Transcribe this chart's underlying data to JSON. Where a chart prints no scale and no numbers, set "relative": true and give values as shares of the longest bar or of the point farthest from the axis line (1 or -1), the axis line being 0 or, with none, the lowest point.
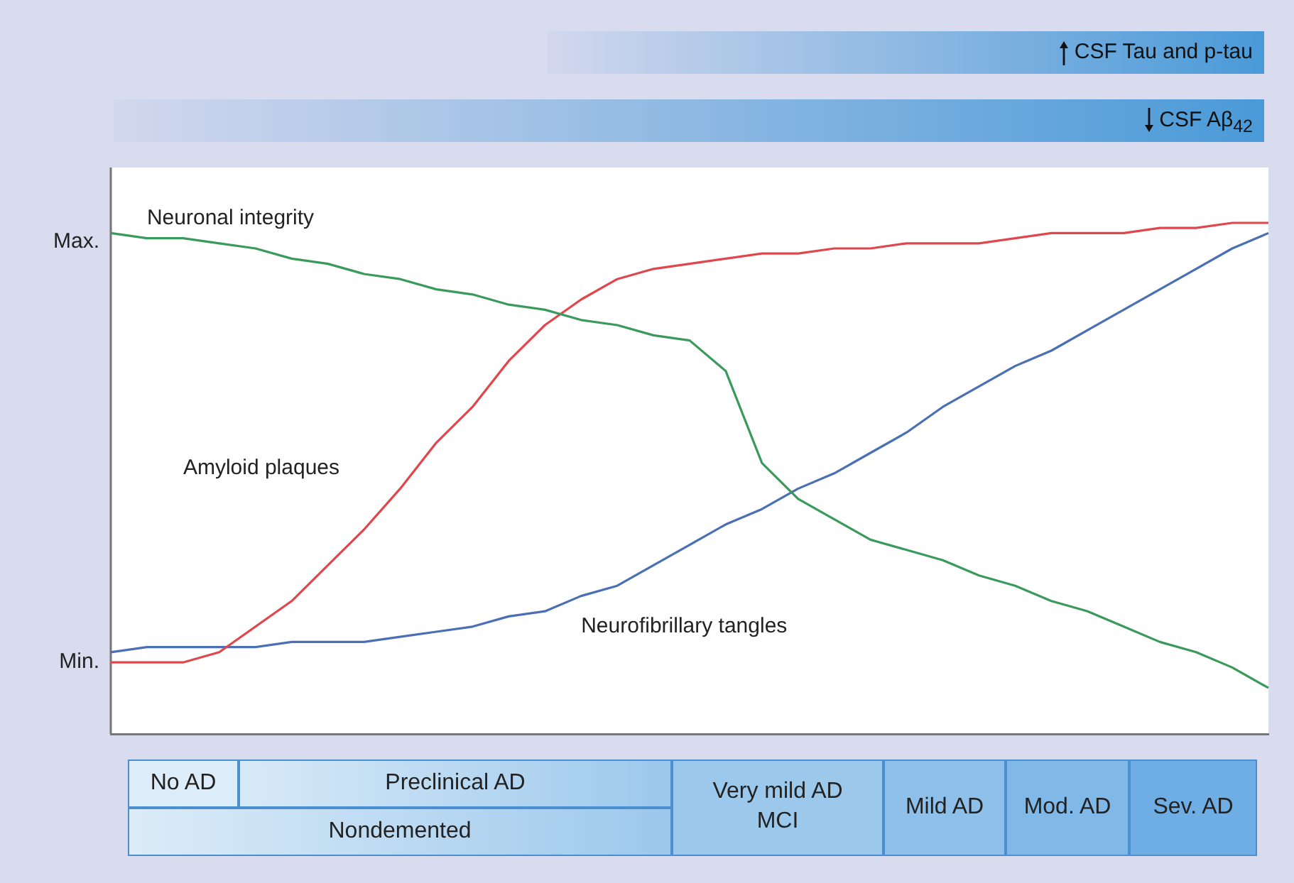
{
  "chart_data": {
    "type": "line",
    "relative": true,
    "categories": [
      null,
      null,
      null,
      null,
      null,
      null,
      null,
      null,
      null,
      null,
      null,
      null,
      null,
      null,
      null,
      null,
      null,
      null,
      null,
      null,
      null,
      null,
      null,
      null,
      null,
      null,
      null,
      null,
      null,
      null,
      null,
      null,
      null
    ],
    "series": [
      {
        "name": "Neuronal integrity",
        "color": "#3a9a5c",
        "values": [
          0.98,
          0.97,
          0.97,
          0.96,
          0.95,
          0.93,
          0.92,
          0.9,
          0.89,
          0.87,
          0.86,
          0.84,
          0.83,
          0.81,
          0.8,
          0.78,
          0.77,
          0.71,
          0.53,
          0.46,
          0.42,
          0.38,
          0.36,
          0.34,
          0.31,
          0.29,
          0.26,
          0.24,
          0.21,
          0.18,
          0.16,
          0.13,
          0.09
        ]
      },
      {
        "name": "Amyloid plaques",
        "color": "#e0474c",
        "values": [
          0.14,
          0.14,
          0.14,
          0.16,
          0.21,
          0.26,
          0.33,
          0.4,
          0.48,
          0.57,
          0.64,
          0.73,
          0.8,
          0.85,
          0.89,
          0.91,
          0.92,
          0.93,
          0.94,
          0.94,
          0.95,
          0.95,
          0.96,
          0.96,
          0.96,
          0.97,
          0.98,
          0.98,
          0.98,
          0.99,
          0.99,
          1.0,
          1.0
        ]
      },
      {
        "name": "Neurofibrillary tangles",
        "color": "#4a6fb5",
        "values": [
          0.16,
          0.17,
          0.17,
          0.17,
          0.17,
          0.18,
          0.18,
          0.18,
          0.19,
          0.2,
          0.21,
          0.23,
          0.24,
          0.27,
          0.29,
          0.33,
          0.37,
          0.41,
          0.44,
          0.48,
          0.51,
          0.55,
          0.59,
          0.64,
          0.68,
          0.72,
          0.75,
          0.79,
          0.83,
          0.87,
          0.91,
          0.95,
          0.98
        ]
      }
    ],
    "grid": false,
    "legend": false,
    "marker": "none",
    "line_style": "solid",
    "annotations": [
      "Max.",
      "Min.",
      "CSF Tau and p-tau",
      "CSF Aβ$_{42}$",
      "No AD",
      "Preclinical AD",
      "Nondemented",
      "Very mild AD",
      "MCI",
      "Mild AD",
      "Mod. AD",
      "Sev. AD"
    ]
  }
}
